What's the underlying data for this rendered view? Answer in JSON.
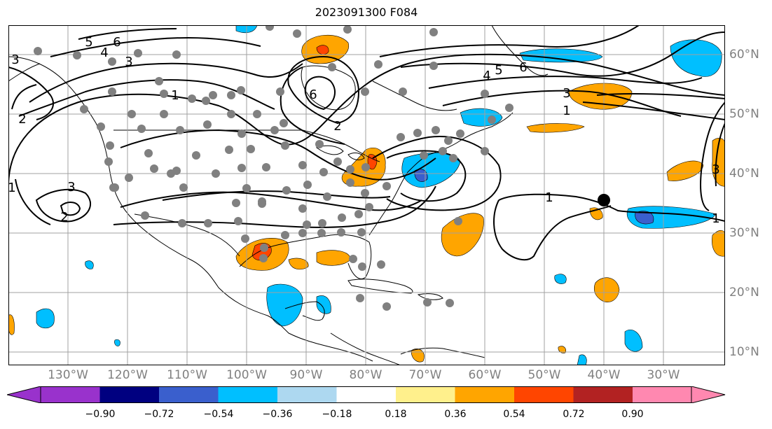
{
  "title": "2023091300 F084",
  "lon_labels": [
    "130°W",
    "120°W",
    "110°W",
    "100°W",
    "90°W",
    "80°W",
    "70°W",
    "60°W",
    "50°W",
    "40°W",
    "30°W"
  ],
  "lat_labels": [
    "60°N",
    "50°N",
    "40°N",
    "30°N",
    "20°N",
    "10°N"
  ],
  "colorbar": {
    "labels": [
      "−0.90",
      "−0.72",
      "−0.54",
      "−0.36",
      "−0.18",
      "0.18",
      "0.36",
      "0.54",
      "0.72",
      "0.90"
    ],
    "colors": [
      "#9932cc",
      "#000080",
      "#3a5fcd",
      "#00bfff",
      "#add8f0",
      "#ffffff",
      "#fff08c",
      "#ffa500",
      "#ff4500",
      "#b22222",
      "#ff88b0"
    ]
  },
  "contour_labels": [
    "5",
    "6",
    "4",
    "3",
    "2",
    "1",
    "6",
    "2",
    "3",
    "1",
    "1",
    "4",
    "5",
    "6",
    "3",
    "1",
    "1",
    "1",
    "2",
    "3",
    "2",
    "1"
  ],
  "colors": {
    "warm": "#ffa500",
    "hot": "#ff4500",
    "cool": "#00bfff",
    "deep": "#3a5fcd",
    "grid": "#a0a0a0",
    "dot": "#808080"
  }
}
